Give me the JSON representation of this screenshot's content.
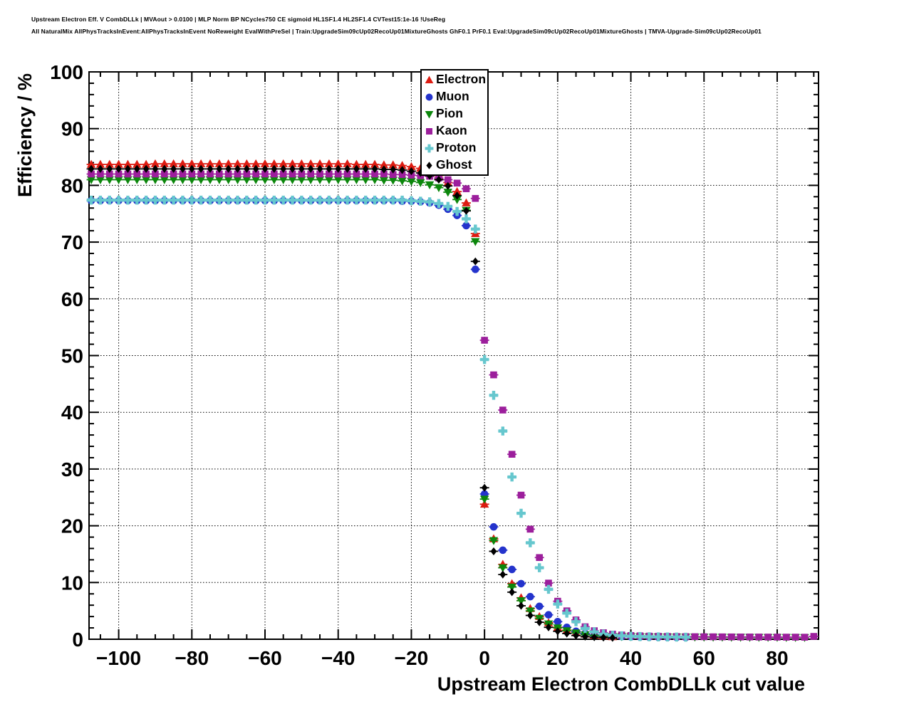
{
  "header": {
    "line1": "Upstream Electron Eff. V CombDLLk | MVAout > 0.0100 | MLP Norm BP NCycles750 CE sigmoid HL1SF1.4 HL2SF1.4 CVTest15:1e-16 !UseReg",
    "line2": "All NaturalMix AllPhysTracksInEvent:AllPhysTracksInEvent NoReweight EvalWithPreSel | Train:UpgradeSim09cUp02RecoUp01MixtureGhosts GhF0.1 PrF0.1 Eval:UpgradeSim09cUp02RecoUp01MixtureGhosts | TMVA-Upgrade-Sim09cUp02RecoUp01"
  },
  "chart_data": {
    "type": "scatter",
    "title": "Upstream Electron Eff. V CombDLLk",
    "xlabel": "Upstream Electron CombDLLk cut value",
    "ylabel": "Efficiency / %",
    "xlim": [
      -108.1,
      91.3
    ],
    "ylim": [
      0,
      100
    ],
    "x_ticks": [
      -100,
      -80,
      -60,
      -40,
      -20,
      0,
      20,
      40,
      60,
      80
    ],
    "x_minor_step": 5,
    "y_ticks": [
      0,
      10,
      20,
      30,
      40,
      50,
      60,
      70,
      80,
      90,
      100
    ],
    "y_minor_step": 2,
    "grid": true,
    "grid_style": "dotted",
    "frame_color": "#000000",
    "legend_position": "top-inside-center-left",
    "series": [
      {
        "name": "Electron",
        "marker": "triangle-up",
        "color": "#dd1c12",
        "x_start": -107.5,
        "x_step": 2.5,
        "values": [
          83.7,
          83.7,
          83.7,
          83.7,
          83.7,
          83.7,
          83.7,
          83.8,
          83.8,
          83.8,
          83.8,
          83.8,
          83.8,
          83.8,
          83.8,
          83.8,
          83.8,
          83.8,
          83.8,
          83.8,
          83.8,
          83.8,
          83.8,
          83.8,
          83.8,
          83.8,
          83.8,
          83.8,
          83.8,
          83.7,
          83.7,
          83.7,
          83.6,
          83.6,
          83.5,
          83.3,
          83.0,
          82.5,
          81.7,
          80.5,
          78.9,
          76.9,
          71.5,
          23.8,
          17.7,
          13.2,
          9.8,
          7.3,
          5.4,
          4.0,
          2.9,
          2.1,
          1.6,
          1.2,
          0.9,
          0.7,
          0.55,
          0.45
        ]
      },
      {
        "name": "Muon",
        "marker": "circle",
        "color": "#2433cc",
        "x_start": -107.5,
        "x_step": 2.5,
        "values": [
          77.3,
          77.3,
          77.3,
          77.3,
          77.3,
          77.3,
          77.3,
          77.3,
          77.3,
          77.3,
          77.3,
          77.3,
          77.3,
          77.3,
          77.3,
          77.3,
          77.3,
          77.3,
          77.3,
          77.3,
          77.3,
          77.3,
          77.3,
          77.3,
          77.3,
          77.3,
          77.3,
          77.3,
          77.3,
          77.3,
          77.3,
          77.3,
          77.3,
          77.3,
          77.2,
          77.2,
          77.1,
          76.9,
          76.5,
          75.8,
          74.7,
          72.9,
          65.2,
          25.6,
          19.8,
          15.7,
          12.3,
          9.8,
          7.5,
          5.8,
          4.3,
          3.1,
          2.1,
          1.4,
          1.0,
          0.75,
          0.6,
          0.5,
          0.45,
          0.42,
          0.4,
          0.38,
          0.36,
          0.35,
          0.33,
          0.32
        ]
      },
      {
        "name": "Pion",
        "marker": "triangle-down",
        "color": "#0c870c",
        "x_start": -107.5,
        "x_step": 2.5,
        "values": [
          81.0,
          81.0,
          81.0,
          81.0,
          81.0,
          81.0,
          81.0,
          81.0,
          81.0,
          81.0,
          81.0,
          81.0,
          81.0,
          81.0,
          81.0,
          81.0,
          81.0,
          81.0,
          81.0,
          81.0,
          81.0,
          81.0,
          81.0,
          81.0,
          81.0,
          81.0,
          81.0,
          81.0,
          81.0,
          81.0,
          81.0,
          81.0,
          80.9,
          80.9,
          80.8,
          80.7,
          80.5,
          80.1,
          79.6,
          78.8,
          77.5,
          75.6,
          70.1,
          24.7,
          17.4,
          12.6,
          9.2,
          6.8,
          5.0,
          3.7,
          2.7,
          2.0,
          1.5,
          1.1,
          0.8,
          0.65,
          0.55,
          0.5,
          0.48,
          0.46,
          0.44,
          0.42,
          0.42,
          0.4,
          0.4,
          0.38,
          0.38,
          0.37,
          0.36,
          0.36,
          0.35,
          0.35,
          0.34,
          0.34,
          0.33,
          0.33,
          0.32,
          0.32,
          0.31
        ]
      },
      {
        "name": "Kaon",
        "marker": "square",
        "color": "#9c1f9c",
        "x_start": -107.5,
        "x_step": 2.5,
        "values": [
          82.0,
          82.0,
          82.0,
          82.0,
          82.0,
          82.0,
          82.0,
          82.0,
          82.0,
          82.0,
          82.0,
          82.0,
          82.0,
          82.0,
          82.0,
          82.0,
          82.0,
          82.0,
          82.0,
          82.0,
          82.0,
          82.0,
          82.0,
          82.0,
          82.0,
          82.0,
          82.0,
          82.0,
          82.0,
          82.0,
          82.0,
          82.0,
          82.0,
          81.9,
          81.9,
          81.8,
          81.7,
          81.6,
          81.3,
          81.0,
          80.4,
          79.4,
          77.7,
          52.7,
          46.6,
          40.4,
          32.6,
          25.4,
          19.4,
          14.4,
          9.9,
          6.7,
          5.0,
          3.4,
          2.2,
          1.5,
          1.15,
          0.9,
          0.75,
          0.65,
          0.6,
          0.55,
          0.52,
          0.5,
          0.48,
          0.46,
          0.45,
          0.44,
          0.43,
          0.42,
          0.41,
          0.4,
          0.4,
          0.39,
          0.38,
          0.38,
          0.37,
          0.37,
          0.36,
          0.5
        ]
      },
      {
        "name": "Proton",
        "marker": "cross",
        "color": "#66c7ce",
        "x_start": -107.5,
        "x_step": 2.5,
        "values": [
          77.4,
          77.4,
          77.4,
          77.4,
          77.4,
          77.4,
          77.4,
          77.4,
          77.4,
          77.4,
          77.4,
          77.4,
          77.4,
          77.4,
          77.4,
          77.4,
          77.4,
          77.4,
          77.4,
          77.4,
          77.4,
          77.4,
          77.4,
          77.4,
          77.4,
          77.4,
          77.4,
          77.4,
          77.4,
          77.4,
          77.4,
          77.4,
          77.4,
          77.4,
          77.4,
          77.3,
          77.2,
          77.1,
          76.8,
          76.3,
          75.4,
          74.1,
          72.3,
          49.3,
          43.0,
          36.7,
          28.6,
          22.2,
          17.0,
          12.6,
          8.8,
          6.2,
          4.6,
          3.1,
          1.9,
          1.3,
          0.9,
          0.7,
          0.6,
          0.52,
          0.48,
          0.44,
          0.42,
          0.4,
          0.38,
          0.36
        ]
      },
      {
        "name": "Ghost",
        "marker": "diamond",
        "color": "#000000",
        "x_start": -107.5,
        "x_step": 2.5,
        "values": [
          82.9,
          82.9,
          82.9,
          82.9,
          82.9,
          82.9,
          82.9,
          82.9,
          82.9,
          82.9,
          82.9,
          82.9,
          82.9,
          82.9,
          82.9,
          82.9,
          82.9,
          82.9,
          82.9,
          82.9,
          82.9,
          82.9,
          82.9,
          82.9,
          82.9,
          82.9,
          82.9,
          82.9,
          82.9,
          82.9,
          82.9,
          82.9,
          82.8,
          82.8,
          82.7,
          82.5,
          82.2,
          81.7,
          81.0,
          79.9,
          78.2,
          75.5,
          66.6,
          26.7,
          15.5,
          11.4,
          8.3,
          5.9,
          4.2,
          3.0,
          2.1,
          1.4,
          1.0,
          0.65,
          0.45,
          0.35,
          0.3,
          0.25
        ]
      }
    ]
  }
}
